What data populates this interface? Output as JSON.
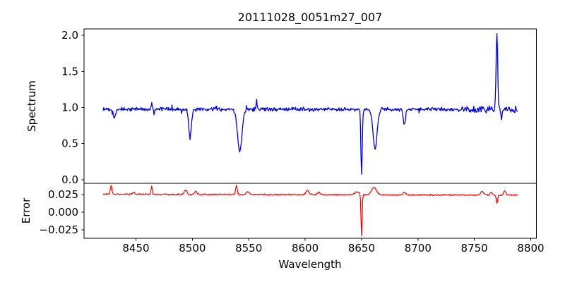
{
  "figure": {
    "title": "20111028_0051m27_007",
    "background_color": "#ffffff",
    "spine_color": "#000000",
    "text_color": "#000000"
  },
  "chart_data": [
    {
      "type": "line",
      "name": "spectrum-panel",
      "title": "20111028_0051m27_007",
      "xlabel": "",
      "ylabel": "Spectrum",
      "line_color": "#0000ee",
      "legend": "none",
      "grid": false,
      "xlim": [
        8404,
        8805
      ],
      "ylim": [
        -0.049,
        2.088
      ],
      "x_start": 8421,
      "x_end": 8788,
      "x_step": 0.5,
      "yticks": [
        {
          "v": 0.0,
          "label": "0.0"
        },
        {
          "v": 0.5,
          "label": "0.5"
        },
        {
          "v": 1.0,
          "label": "1.0"
        },
        {
          "v": 1.5,
          "label": "1.5"
        },
        {
          "v": 2.0,
          "label": "2.0"
        }
      ],
      "continuum": 0.975,
      "noise_amp": 0.032,
      "noise_boost_region": {
        "from": 8742,
        "to": 8790,
        "factor": 1.9
      },
      "features": [
        {
          "center": 8431,
          "amp": -0.12,
          "sigma": 1.0,
          "kind": "absorption"
        },
        {
          "center": 8464,
          "amp": 0.09,
          "sigma": 0.4,
          "kind": "artifact"
        },
        {
          "center": 8466,
          "amp": -0.07,
          "sigma": 0.4,
          "kind": "artifact"
        },
        {
          "center": 8498,
          "amp": -0.37,
          "sigma": 1.2,
          "kind": "absorption"
        },
        {
          "center": 8542,
          "amp": -0.58,
          "sigma": 2.0,
          "kind": "absorption"
        },
        {
          "center": 8557,
          "amp": 0.12,
          "sigma": 0.4,
          "kind": "artifact"
        },
        {
          "center": 8650,
          "amp": -0.9,
          "sigma": 0.6,
          "kind": "absorption"
        },
        {
          "center": 8662,
          "amp": -0.55,
          "sigma": 1.8,
          "kind": "absorption"
        },
        {
          "center": 8688,
          "amp": -0.21,
          "sigma": 1.0,
          "kind": "absorption"
        },
        {
          "center": 8770,
          "amp": 1.06,
          "sigma": 0.7,
          "kind": "emission"
        },
        {
          "center": 8774,
          "amp": -0.1,
          "sigma": 0.5,
          "kind": "artifact"
        }
      ]
    },
    {
      "type": "line",
      "name": "error-panel",
      "title": "",
      "xlabel": "Wavelength",
      "ylabel": "Error",
      "line_color": "#ff0000",
      "legend": "none",
      "grid": false,
      "xlim": [
        8404,
        8805
      ],
      "ylim": [
        -0.037,
        0.041
      ],
      "x_start": 8421,
      "x_end": 8788,
      "x_step": 0.5,
      "yticks": [
        {
          "v": 0.025,
          "label": "0.025"
        },
        {
          "v": 0.0,
          "label": "0.000"
        },
        {
          "v": -0.025,
          "label": "−0.025"
        }
      ],
      "xticks": [
        {
          "v": 8450,
          "label": "8450"
        },
        {
          "v": 8500,
          "label": "8500"
        },
        {
          "v": 8550,
          "label": "8550"
        },
        {
          "v": 8600,
          "label": "8600"
        },
        {
          "v": 8650,
          "label": "8650"
        },
        {
          "v": 8700,
          "label": "8700"
        },
        {
          "v": 8750,
          "label": "8750"
        },
        {
          "v": 8800,
          "label": "8800"
        }
      ],
      "baseline_start": 0.0256,
      "baseline_end": 0.0242,
      "noise_amp": 0.0011,
      "features": [
        {
          "center": 8428,
          "amp": 0.0125,
          "sigma": 0.7
        },
        {
          "center": 8448,
          "amp": 0.003,
          "sigma": 1.0
        },
        {
          "center": 8464,
          "amp": 0.0115,
          "sigma": 0.5
        },
        {
          "center": 8494,
          "amp": 0.006,
          "sigma": 1.2
        },
        {
          "center": 8503,
          "amp": 0.0045,
          "sigma": 1.0
        },
        {
          "center": 8539,
          "amp": 0.0125,
          "sigma": 0.7
        },
        {
          "center": 8549,
          "amp": 0.004,
          "sigma": 1.3
        },
        {
          "center": 8602,
          "amp": 0.006,
          "sigma": 1.4
        },
        {
          "center": 8612,
          "amp": 0.0035,
          "sigma": 1.2
        },
        {
          "center": 8646,
          "amp": 0.004,
          "sigma": 2.0
        },
        {
          "center": 8650,
          "amp": -0.059,
          "sigma": 0.5
        },
        {
          "center": 8661,
          "amp": 0.0105,
          "sigma": 2.2
        },
        {
          "center": 8688,
          "amp": 0.0035,
          "sigma": 1.2
        },
        {
          "center": 8757,
          "amp": 0.005,
          "sigma": 1.4
        },
        {
          "center": 8765,
          "amp": 0.004,
          "sigma": 1.0
        },
        {
          "center": 8770,
          "amp": -0.012,
          "sigma": 0.6
        },
        {
          "center": 8777,
          "amp": 0.006,
          "sigma": 1.1
        }
      ]
    }
  ]
}
